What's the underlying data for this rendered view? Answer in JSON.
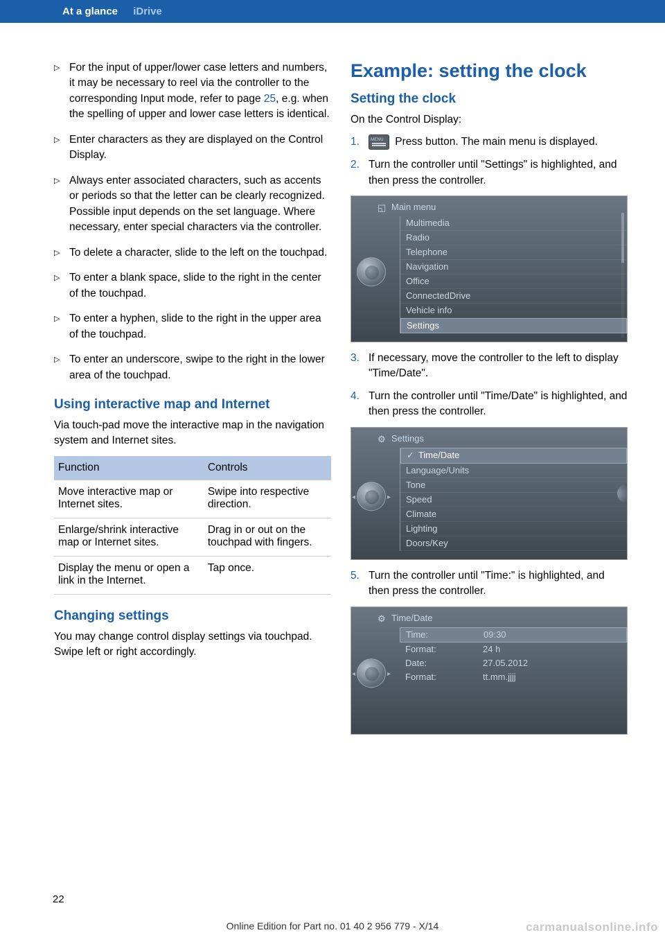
{
  "header": {
    "tab1": "At a glance",
    "tab2": "iDrive"
  },
  "left_col": {
    "bullets": [
      {
        "pre": "For the input of upper/lower case letters and numbers, it may be necessary to reel via the controller to the corresponding In­put mode, refer to page ",
        "ref": "25",
        "post": ", e.g. when the spelling of upper and lower case letters is identical."
      },
      {
        "pre": "Enter characters as they are displayed on the Control Display.",
        "ref": "",
        "post": ""
      },
      {
        "pre": "Always enter associated characters, such as accents or periods so that the letter can be clearly recognized. Possible input de­pends on the set language. Where neces­sary, enter special characters via the con­troller.",
        "ref": "",
        "post": ""
      },
      {
        "pre": "To delete a character, slide to the left on the touchpad.",
        "ref": "",
        "post": ""
      },
      {
        "pre": "To enter a blank space, slide to the right in the center of the touchpad.",
        "ref": "",
        "post": ""
      },
      {
        "pre": "To enter a hyphen, slide to the right in the upper area of the touchpad.",
        "ref": "",
        "post": ""
      },
      {
        "pre": "To enter an underscore, swipe to the right in the lower area of the touchpad.",
        "ref": "",
        "post": ""
      }
    ],
    "h2_map": "Using interactive map and Internet",
    "map_intro": "Via touch-pad move the interactive map in the navigation system and Internet sites.",
    "table": {
      "headers": [
        "Function",
        "Controls"
      ],
      "rows": [
        [
          "Move interactive map or Internet sites.",
          "Swipe into re­spective direc­tion."
        ],
        [
          "Enlarge/shrink interactive map or Internet sites.",
          "Drag in or out on the touchpad with fingers."
        ],
        [
          "Display the menu or open a link in the Internet.",
          "Tap once."
        ]
      ]
    },
    "h2_settings": "Changing settings",
    "settings_text": "You may change control display settings via touchpad. Swipe left or right accordingly."
  },
  "right_col": {
    "h1": "Example: setting the clock",
    "h2": "Setting the clock",
    "intro": "On the Control Display:",
    "steps": {
      "s1_post": " Press button. The main menu is dis­played.",
      "s2": "Turn the controller until \"Settings\" is high­lighted, and then press the controller.",
      "s3": "If necessary, move the controller to the left to display \"Time/Date\".",
      "s4": "Turn the controller until \"Time/Date\" is highlighted, and then press the controller.",
      "s5": "Turn the controller until \"Time:\" is high­lighted, and then press the controller."
    },
    "screen1": {
      "title": "Main menu",
      "items": [
        "Multimedia",
        "Radio",
        "Telephone",
        "Navigation",
        "Office",
        "ConnectedDrive",
        "Vehicle info",
        "Settings"
      ],
      "selected_index": 7
    },
    "screen2": {
      "title": "Settings",
      "items": [
        "Time/Date",
        "Language/Units",
        "Tone",
        "Speed",
        "Climate",
        "Lighting",
        "Doors/Key"
      ],
      "selected_index": 0
    },
    "screen3": {
      "title": "Time/Date",
      "rows": [
        {
          "label": "Time:",
          "value": "09:30"
        },
        {
          "label": "Format:",
          "value": "24 h"
        },
        {
          "label": "Date:",
          "value": "27.05.2012"
        },
        {
          "label": "Format:",
          "value": "tt.mm.jjjj"
        }
      ],
      "selected_index": 0
    }
  },
  "footer": {
    "page_num": "22",
    "edition": "Online Edition for Part no. 01 40 2 956 779 - X/14",
    "watermark": "carmanualsonline.info"
  },
  "colors": {
    "blue": "#1b5fa9",
    "table_header": "#b5c8e3",
    "screen_top": "#6a7782",
    "screen_bottom": "#3d4750"
  }
}
